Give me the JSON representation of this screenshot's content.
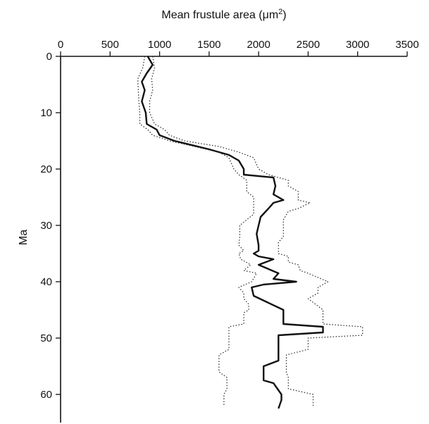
{
  "chart_data": {
    "type": "line",
    "title": "",
    "xlabel": "Mean frustule area (μm²)",
    "xlabel_parts": {
      "main": "Mean frustule area (",
      "unit": "μm",
      "sup": "2",
      "close": ")"
    },
    "ylabel": "Ma",
    "xlim": [
      0,
      3500
    ],
    "ylim": [
      0,
      65
    ],
    "y_inverted": true,
    "x_axis_position": "top",
    "grid": false,
    "xticks": [
      0,
      500,
      1000,
      1500,
      2000,
      2500,
      3000,
      3500
    ],
    "yticks": [
      0,
      10,
      20,
      30,
      40,
      50,
      60
    ],
    "series": [
      {
        "style": "solid",
        "color": "#111111",
        "points": [
          [
            880,
            0
          ],
          [
            930,
            1.5
          ],
          [
            870,
            3
          ],
          [
            820,
            4.5
          ],
          [
            850,
            6
          ],
          [
            820,
            8
          ],
          [
            860,
            10
          ],
          [
            870,
            12
          ],
          [
            970,
            13
          ],
          [
            1000,
            14
          ],
          [
            1150,
            15
          ],
          [
            1500,
            16.5
          ],
          [
            1700,
            17.5
          ],
          [
            1800,
            18.5
          ],
          [
            1850,
            20
          ],
          [
            1850,
            21
          ],
          [
            2150,
            21.5
          ],
          [
            2170,
            23
          ],
          [
            2150,
            24.5
          ],
          [
            2250,
            25.5
          ],
          [
            2150,
            26
          ],
          [
            2100,
            27
          ],
          [
            2020,
            28.5
          ],
          [
            2000,
            30
          ],
          [
            1980,
            31.5
          ],
          [
            2000,
            33.5
          ],
          [
            2000,
            34.5
          ],
          [
            1950,
            35
          ],
          [
            2000,
            35.5
          ],
          [
            2150,
            36
          ],
          [
            2000,
            37
          ],
          [
            2200,
            38.5
          ],
          [
            2150,
            39.5
          ],
          [
            2380,
            40
          ],
          [
            2050,
            40.5
          ],
          [
            1930,
            41
          ],
          [
            1950,
            42.5
          ],
          [
            2250,
            45
          ],
          [
            2250,
            47.5
          ],
          [
            2650,
            48
          ],
          [
            2650,
            49
          ],
          [
            2200,
            49.5
          ],
          [
            2200,
            52
          ],
          [
            2200,
            54
          ],
          [
            2050,
            55
          ],
          [
            2050,
            57.5
          ],
          [
            2150,
            58
          ],
          [
            2230,
            60
          ],
          [
            2230,
            61
          ],
          [
            2200,
            62.5
          ]
        ]
      },
      {
        "style": "dotted",
        "color": "#222222",
        "points": [
          [
            850,
            0
          ],
          [
            830,
            2
          ],
          [
            780,
            4
          ],
          [
            790,
            8
          ],
          [
            800,
            10
          ],
          [
            800,
            12
          ],
          [
            880,
            13
          ],
          [
            930,
            14
          ],
          [
            1100,
            15
          ],
          [
            1350,
            16
          ],
          [
            1600,
            17
          ],
          [
            1700,
            18
          ],
          [
            1750,
            20
          ],
          [
            1800,
            21
          ],
          [
            1880,
            22
          ],
          [
            1880,
            24
          ],
          [
            1950,
            25
          ],
          [
            1950,
            28
          ],
          [
            1810,
            30
          ],
          [
            1810,
            32
          ],
          [
            1800,
            33.5
          ],
          [
            1850,
            34.5
          ],
          [
            1800,
            35
          ],
          [
            1820,
            36
          ],
          [
            1920,
            37
          ],
          [
            1850,
            38
          ],
          [
            1980,
            38.5
          ],
          [
            1930,
            40
          ],
          [
            1800,
            41
          ],
          [
            1850,
            42
          ],
          [
            1850,
            43
          ],
          [
            1900,
            44
          ],
          [
            1900,
            45
          ],
          [
            1850,
            45.5
          ],
          [
            1850,
            47.5
          ],
          [
            1700,
            48
          ],
          [
            1700,
            50
          ],
          [
            1700,
            52
          ],
          [
            1600,
            53
          ],
          [
            1600,
            56
          ],
          [
            1680,
            57
          ],
          [
            1680,
            59
          ],
          [
            1650,
            60
          ],
          [
            1650,
            62
          ]
        ]
      },
      {
        "style": "dotted",
        "color": "#222222",
        "points": [
          [
            930,
            0
          ],
          [
            950,
            2
          ],
          [
            920,
            4
          ],
          [
            930,
            6
          ],
          [
            900,
            8
          ],
          [
            900,
            10
          ],
          [
            950,
            12
          ],
          [
            1050,
            13
          ],
          [
            1100,
            14
          ],
          [
            1250,
            15
          ],
          [
            1600,
            16
          ],
          [
            1800,
            17
          ],
          [
            1950,
            18
          ],
          [
            2000,
            20
          ],
          [
            2100,
            21
          ],
          [
            2300,
            22
          ],
          [
            2300,
            23
          ],
          [
            2400,
            24
          ],
          [
            2400,
            25.5
          ],
          [
            2520,
            26
          ],
          [
            2400,
            27
          ],
          [
            2300,
            27.5
          ],
          [
            2250,
            29
          ],
          [
            2250,
            31
          ],
          [
            2250,
            32
          ],
          [
            2200,
            33
          ],
          [
            2200,
            35
          ],
          [
            2300,
            35.5
          ],
          [
            2300,
            36.5
          ],
          [
            2400,
            37
          ],
          [
            2420,
            38
          ],
          [
            2500,
            38.5
          ],
          [
            2700,
            40
          ],
          [
            2600,
            41
          ],
          [
            2600,
            42
          ],
          [
            2500,
            43
          ],
          [
            2650,
            45
          ],
          [
            2650,
            47.5
          ],
          [
            3050,
            48
          ],
          [
            3050,
            49.5
          ],
          [
            2500,
            50
          ],
          [
            2500,
            52
          ],
          [
            2280,
            53
          ],
          [
            2280,
            56
          ],
          [
            2300,
            57
          ],
          [
            2300,
            59
          ],
          [
            2550,
            60
          ],
          [
            2550,
            62
          ]
        ]
      }
    ]
  }
}
